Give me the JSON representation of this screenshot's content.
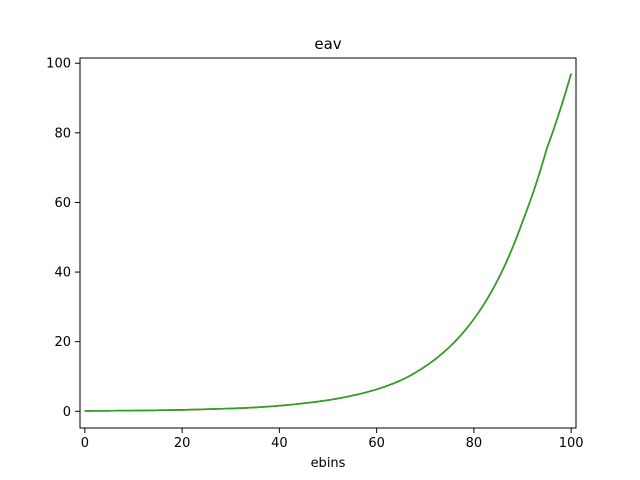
{
  "chart_data": {
    "type": "line",
    "title": "eav",
    "xlabel": "ebins",
    "ylabel": "",
    "xlim": [
      -1,
      101
    ],
    "ylim": [
      -4.8,
      101.5
    ],
    "xticks": [
      0,
      20,
      40,
      60,
      80,
      100
    ],
    "yticks": [
      0,
      20,
      40,
      60,
      80,
      100
    ],
    "grid": false,
    "legend": "none",
    "series": [
      {
        "color": "#1f77b4",
        "x": [
          0,
          5,
          10,
          15,
          20,
          25,
          30,
          35,
          40,
          45,
          50,
          55,
          60,
          65,
          70,
          75,
          80,
          85,
          90,
          95,
          100
        ],
        "y": [
          0.1,
          0.15,
          0.2,
          0.3,
          0.4,
          0.6,
          0.8,
          1.1,
          1.6,
          2.3,
          3.2,
          4.5,
          6.3,
          8.9,
          12.9,
          18.5,
          26.5,
          38.0,
          54.5,
          75.5,
          97.0
        ]
      },
      {
        "color": "#ff7f0e",
        "x": [
          0,
          5,
          10,
          15,
          20,
          25,
          30,
          35,
          40,
          45,
          50,
          55,
          60,
          65,
          70,
          75,
          80,
          85,
          90,
          95,
          100
        ],
        "y": [
          0.1,
          0.15,
          0.2,
          0.3,
          0.4,
          0.6,
          0.8,
          1.1,
          1.6,
          2.3,
          3.2,
          4.5,
          6.3,
          8.9,
          12.9,
          18.5,
          26.5,
          38.0,
          54.5,
          75.5,
          97.0
        ]
      },
      {
        "color": "#2ca02c",
        "x": [
          0,
          5,
          10,
          15,
          20,
          25,
          30,
          35,
          40,
          45,
          50,
          55,
          60,
          65,
          70,
          75,
          80,
          85,
          90,
          95,
          100
        ],
        "y": [
          0.1,
          0.15,
          0.2,
          0.3,
          0.4,
          0.6,
          0.8,
          1.1,
          1.6,
          2.3,
          3.2,
          4.5,
          6.3,
          8.9,
          12.9,
          18.5,
          26.5,
          38.0,
          54.5,
          75.5,
          97.0
        ]
      }
    ]
  }
}
